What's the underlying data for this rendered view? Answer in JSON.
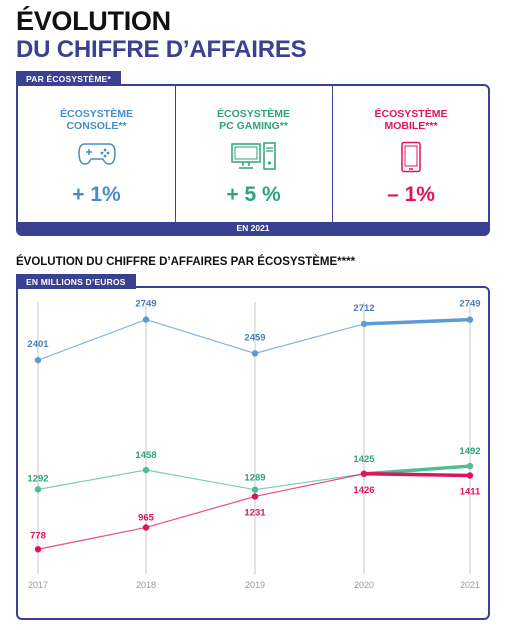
{
  "header": {
    "title_line1": "ÉVOLUTION",
    "title_line2": "DU CHIFFRE D’AFFAIRES",
    "tag_top": "PAR ÉCOSYSTÈME*"
  },
  "ecosystems": [
    {
      "name_line1": "ÉCOSYSTÈME",
      "name_line2": "CONSOLE**",
      "change": "+ 1%",
      "color": "#4a8cc8",
      "icon": "gamepad-icon"
    },
    {
      "name_line1": "ÉCOSYSTÈME",
      "name_line2": "PC GAMING**",
      "change": "+ 5 %",
      "color": "#2fa37a",
      "icon": "desktop-pc-icon"
    },
    {
      "name_line1": "ÉCOSYSTÈME",
      "name_line2": "MOBILE***",
      "change": "– 1%",
      "color": "#e0145e",
      "icon": "smartphone-icon"
    }
  ],
  "year_label": "EN 2021",
  "chart_section": {
    "subtitle": "ÉVOLUTION DU CHIFFRE D’AFFAIRES PAR ÉCOSYSTÈME****",
    "unit_tag": "EN MILLIONS D’EUROS"
  },
  "chart_data": {
    "type": "line",
    "x": [
      "2017",
      "2018",
      "2019",
      "2020",
      "2021"
    ],
    "ylim": [
      600,
      2900
    ],
    "series": [
      {
        "values": [
          2401,
          2749,
          2459,
          2712,
          2749
        ],
        "color": "#5b9bd5"
      },
      {
        "values": [
          1292,
          1458,
          1289,
          1425,
          1492
        ],
        "color": "#4fbf8f"
      },
      {
        "values": [
          778,
          965,
          1231,
          1426,
          1411
        ],
        "color": "#e0145e"
      }
    ]
  }
}
